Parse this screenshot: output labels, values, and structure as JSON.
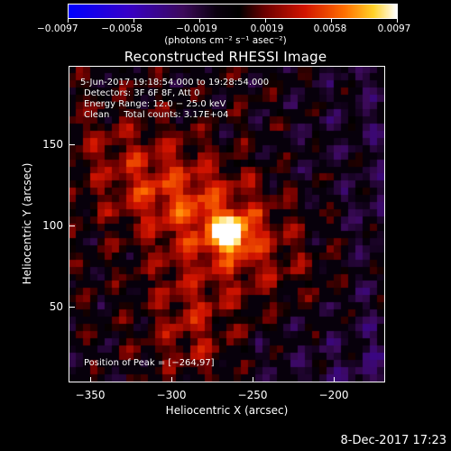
{
  "colorbar": {
    "tick_labels": [
      "−0.0097",
      "−0.0058",
      "−0.0019",
      "0.0019",
      "0.0058",
      "0.0097"
    ],
    "range": [
      -0.0097,
      0.0097
    ],
    "units": "(photons cm⁻² s⁻¹ asec⁻²)"
  },
  "title": "Reconstructed RHESSI Image",
  "info": {
    "time_range": "5-Jun-2017 19:18:54.000 to 19:28:54.000",
    "detectors": "Detectors: 3F 6F 8F, Att 0",
    "energy_range": "Energy Range: 12.0 − 25.0 keV",
    "clean": "Clean     Total counts: 3.17E+04",
    "peak_position": "Position of Peak = [−264,97]"
  },
  "axes": {
    "x_title": "Heliocentric X (arcsec)",
    "y_title": "Heliocentric Y (arcsec)",
    "x_ticks": [
      "−350",
      "−300",
      "−250",
      "−200"
    ],
    "y_ticks": [
      "150",
      "100",
      "50"
    ],
    "x_range": [
      -365,
      -170
    ],
    "y_range": [
      2,
      197
    ]
  },
  "footer": {
    "timestamp": "8-Dec-2017 17:23"
  },
  "colors": {
    "colormap": "hot (RHESSI color table)",
    "background": "#000000",
    "foreground": "#ffffff"
  }
}
